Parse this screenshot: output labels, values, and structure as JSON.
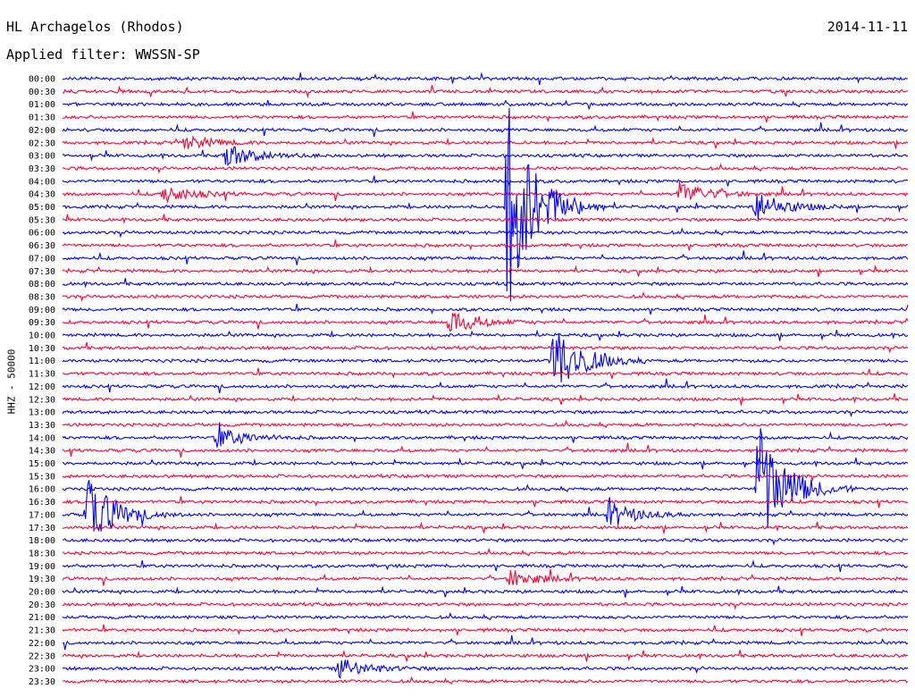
{
  "header": {
    "station": "HL Archagelos (Rhodos)",
    "filter": "Applied filter: WWSSN-SP",
    "date": "2014-11-11"
  },
  "chart_data": {
    "type": "line",
    "title": "HL Archagelos (Rhodos)",
    "subtitle": "Applied filter: WWSSN-SP",
    "date": "2014-11-11",
    "ylabel": "HHZ - 50000",
    "xlabel": "",
    "series": [
      {
        "color": "#0000ff"
      },
      {
        "color": "#ff0033"
      }
    ],
    "rows": [
      "00:00",
      "00:30",
      "01:00",
      "01:30",
      "02:00",
      "02:30",
      "03:00",
      "03:30",
      "04:00",
      "04:30",
      "05:00",
      "05:30",
      "06:00",
      "06:30",
      "07:00",
      "07:30",
      "08:00",
      "08:30",
      "09:00",
      "09:30",
      "10:00",
      "10:30",
      "11:00",
      "11:30",
      "12:00",
      "12:30",
      "13:00",
      "13:30",
      "14:00",
      "14:30",
      "15:00",
      "15:30",
      "16:00",
      "16:30",
      "17:00",
      "17:30",
      "18:00",
      "18:30",
      "19:00",
      "19:30",
      "20:00",
      "20:30",
      "21:00",
      "21:30",
      "22:00",
      "22:30",
      "23:00",
      "23:30"
    ],
    "row_minutes": 30,
    "events": [
      {
        "row": 9,
        "minute": 3.6,
        "amplitude": 10
      },
      {
        "row": 6,
        "minute": 5.8,
        "amplitude": 14
      },
      {
        "row": 5,
        "minute": 4.3,
        "amplitude": 8
      },
      {
        "row": 10,
        "minute": 15.8,
        "amplitude": 120
      },
      {
        "row": 10,
        "minute": 24.6,
        "amplitude": 18
      },
      {
        "row": 9,
        "minute": 21.9,
        "amplitude": 14
      },
      {
        "row": 22,
        "minute": 17.4,
        "amplitude": 45
      },
      {
        "row": 32,
        "minute": 24.7,
        "amplitude": 75
      },
      {
        "row": 34,
        "minute": 0.9,
        "amplitude": 40
      },
      {
        "row": 34,
        "minute": 19.4,
        "amplitude": 14
      },
      {
        "row": 39,
        "minute": 15.9,
        "amplitude": 10
      },
      {
        "row": 46,
        "minute": 9.8,
        "amplitude": 12
      },
      {
        "row": 19,
        "minute": 13.7,
        "amplitude": 14
      },
      {
        "row": 28,
        "minute": 5.5,
        "amplitude": 12
      }
    ]
  }
}
